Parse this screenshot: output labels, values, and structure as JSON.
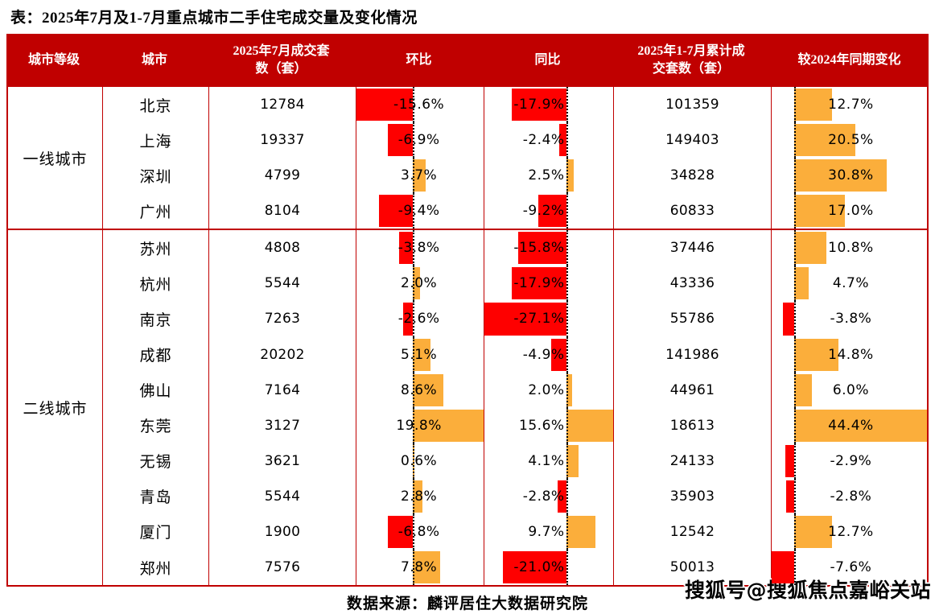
{
  "title": "表：2025年7月及1-7月重点城市二手住宅成交量及变化情况",
  "source_note": "数据来源：麟评居住大数据研究院",
  "watermark": "搜狐号@搜狐焦点嘉峪关站",
  "colors": {
    "header_bg": "#c00000",
    "border": "#c00000",
    "header_text": "#ffffff",
    "text": "#000000",
    "bar_negative": "#fe0000",
    "bar_positive": "#fbae3b",
    "zero_line": "#000000"
  },
  "chart_data": {
    "type": "table",
    "title": "表：2025年7月及1-7月重点城市二手住宅成交量及变化情况",
    "headers": [
      "城市等级",
      "城市",
      "2025年7月成交套\n数（套）",
      "环比",
      "同比",
      "2025年1-7月累计成\n交套数（套）",
      "较2024年同期变化"
    ],
    "bar_axes": {
      "mom": {
        "min": -15.6,
        "max": 19.8
      },
      "yoy": {
        "min": -27.1,
        "max": 15.6
      },
      "vs2024": {
        "min": -7.6,
        "max": 44.4
      }
    },
    "groups": [
      {
        "tier": "一线城市",
        "rows": [
          {
            "city": "北京",
            "jul_units": 12784,
            "mom_pct": -15.6,
            "yoy_pct": -17.9,
            "cum_units": 101359,
            "vs2024_pct": 12.7
          },
          {
            "city": "上海",
            "jul_units": 19337,
            "mom_pct": -6.9,
            "yoy_pct": -2.4,
            "cum_units": 149403,
            "vs2024_pct": 20.5
          },
          {
            "city": "深圳",
            "jul_units": 4799,
            "mom_pct": 3.7,
            "yoy_pct": 2.5,
            "cum_units": 34828,
            "vs2024_pct": 30.8
          },
          {
            "city": "广州",
            "jul_units": 8104,
            "mom_pct": -9.4,
            "yoy_pct": -9.2,
            "cum_units": 60833,
            "vs2024_pct": 17.0
          }
        ]
      },
      {
        "tier": "二线城市",
        "rows": [
          {
            "city": "苏州",
            "jul_units": 4808,
            "mom_pct": -3.8,
            "yoy_pct": -15.8,
            "cum_units": 37446,
            "vs2024_pct": 10.8
          },
          {
            "city": "杭州",
            "jul_units": 5544,
            "mom_pct": 2.0,
            "yoy_pct": -17.9,
            "cum_units": 43336,
            "vs2024_pct": 4.7
          },
          {
            "city": "南京",
            "jul_units": 7263,
            "mom_pct": -2.6,
            "yoy_pct": -27.1,
            "cum_units": 55786,
            "vs2024_pct": -3.8
          },
          {
            "city": "成都",
            "jul_units": 20202,
            "mom_pct": 5.1,
            "yoy_pct": -4.9,
            "cum_units": 141986,
            "vs2024_pct": 14.8
          },
          {
            "city": "佛山",
            "jul_units": 7164,
            "mom_pct": 8.6,
            "yoy_pct": 2.0,
            "cum_units": 44961,
            "vs2024_pct": 6.0
          },
          {
            "city": "东莞",
            "jul_units": 3127,
            "mom_pct": 19.8,
            "yoy_pct": 15.6,
            "cum_units": 18613,
            "vs2024_pct": 44.4
          },
          {
            "city": "无锡",
            "jul_units": 3621,
            "mom_pct": 0.6,
            "yoy_pct": 4.1,
            "cum_units": 24133,
            "vs2024_pct": -2.9
          },
          {
            "city": "青岛",
            "jul_units": 5544,
            "mom_pct": 2.8,
            "yoy_pct": -2.8,
            "cum_units": 35903,
            "vs2024_pct": -2.8
          },
          {
            "city": "厦门",
            "jul_units": 1900,
            "mom_pct": -6.8,
            "yoy_pct": 9.7,
            "cum_units": 12542,
            "vs2024_pct": 12.7
          },
          {
            "city": "郑州",
            "jul_units": 7576,
            "mom_pct": 7.8,
            "yoy_pct": -21.0,
            "cum_units": 50013,
            "vs2024_pct": -7.6
          }
        ]
      }
    ]
  }
}
